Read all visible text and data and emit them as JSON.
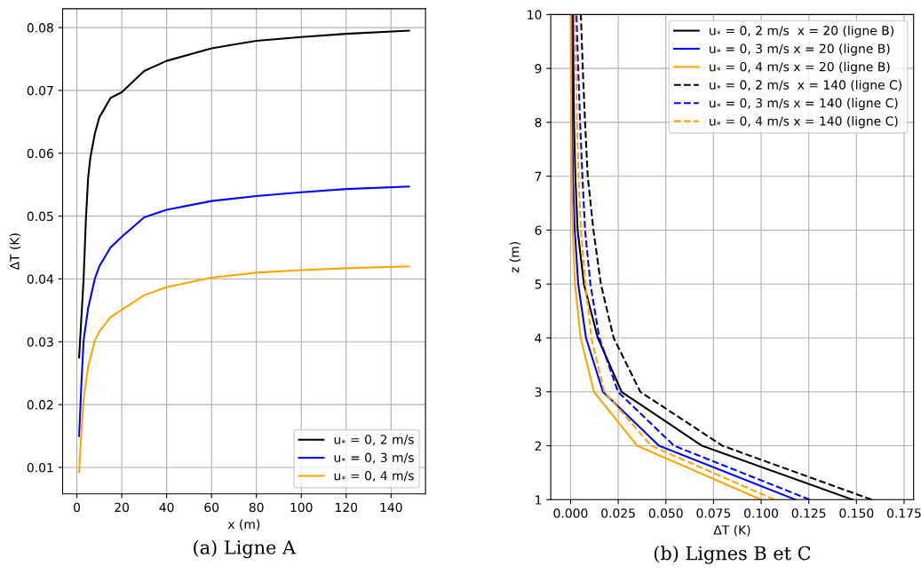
{
  "chart_data": [
    {
      "type": "line",
      "xlabel": "x (m)",
      "ylabel": "ΔT (K)",
      "annotations": [
        "(a) Ligne A"
      ],
      "xlim": [
        -6.35,
        155.35
      ],
      "ylim": [
        0.0058,
        0.083
      ],
      "xticks": [
        0,
        20,
        40,
        60,
        80,
        100,
        120,
        140
      ],
      "yticks": [
        0.01,
        0.02,
        0.03,
        0.04,
        0.05,
        0.06,
        0.07,
        0.08
      ],
      "grid": true,
      "legend": "lower right",
      "line_style": "solid",
      "series": [
        {
          "name": "u$_{*}$ = 0, 2 m/s",
          "color": "#000000",
          "x": [
            1,
            3,
            4,
            5,
            6,
            8,
            10,
            15,
            20,
            30,
            40,
            60,
            80,
            100,
            120,
            148
          ],
          "values": [
            0.0275,
            0.04,
            0.0493,
            0.056,
            0.0593,
            0.0631,
            0.0657,
            0.0688,
            0.0697,
            0.0731,
            0.0747,
            0.0767,
            0.0779,
            0.0785,
            0.079,
            0.0795
          ]
        },
        {
          "name": "u$_{*}$ = 0, 3 m/s",
          "color": "#0000ff",
          "x": [
            1,
            2,
            3,
            5,
            8,
            10,
            15,
            20,
            30,
            40,
            60,
            80,
            100,
            120,
            148
          ],
          "values": [
            0.015,
            0.0232,
            0.0302,
            0.0353,
            0.04,
            0.042,
            0.045,
            0.0467,
            0.0498,
            0.051,
            0.0524,
            0.0532,
            0.0538,
            0.0543,
            0.0547
          ]
        },
        {
          "name": "u$_{*}$ = 0, 4 m/s",
          "color": "#ffa500",
          "x": [
            1,
            2,
            3,
            5,
            8,
            10,
            15,
            20,
            30,
            40,
            60,
            80,
            100,
            120,
            148
          ],
          "values": [
            0.0093,
            0.0157,
            0.0208,
            0.026,
            0.0302,
            0.0316,
            0.0339,
            0.0351,
            0.0374,
            0.0387,
            0.0402,
            0.041,
            0.0414,
            0.0417,
            0.042
          ]
        }
      ]
    },
    {
      "type": "line",
      "xlabel": "ΔT (K)",
      "ylabel": "z (m)",
      "annotations": [
        "(b) Lignes B et C"
      ],
      "xlim": [
        -0.0104,
        0.18
      ],
      "ylim": [
        1,
        10
      ],
      "xticks": [
        {
          "value": 0,
          "label": "0.000"
        },
        {
          "value": 0.025,
          "label": "0.025"
        },
        {
          "value": 0.05,
          "label": "0.050"
        },
        {
          "value": 0.075,
          "label": "0.075"
        },
        {
          "value": 0.1,
          "label": "0.100"
        },
        {
          "value": 0.125,
          "label": "0.125"
        },
        {
          "value": 0.15,
          "label": "0.150"
        },
        {
          "value": 0.175,
          "label": "0.175"
        }
      ],
      "yticks": [
        1,
        2,
        3,
        4,
        5,
        6,
        7,
        8,
        9,
        10
      ],
      "grid": true,
      "legend": "top right",
      "series": [
        {
          "name": "u$_{*}$ = 0, 2 m/s  x = 20 (ligne B)",
          "color": "#000000",
          "line_style": "solid",
          "x": [
            0.148,
            0.069,
            0.0268,
            0.0143,
            0.007,
            0.0037,
            0.0025,
            0.0018,
            0.0015,
            0.0013
          ],
          "values": [
            1,
            2,
            3,
            4,
            5,
            6,
            7,
            8,
            9,
            10
          ]
        },
        {
          "name": "u$_{*}$ = 0, 3 m/s x = 20 (ligne B)",
          "color": "#0000ff",
          "line_style": "solid",
          "x": [
            0.118,
            0.0464,
            0.017,
            0.0081,
            0.004,
            0.0022,
            0.0012,
            0.0009,
            0.0007,
            0.0006
          ],
          "values": [
            1,
            2,
            3,
            4,
            5,
            6,
            7,
            8,
            9,
            10
          ]
        },
        {
          "name": "u$_{*}$ = 0, 4 m/s x = 20 (ligne B)",
          "color": "#ffa500",
          "line_style": "solid",
          "x": [
            0.1,
            0.035,
            0.0123,
            0.0053,
            0.0023,
            0.0011,
            0.0006,
            0.0003,
            0.0002,
            0.0001
          ],
          "values": [
            1,
            2,
            3,
            4,
            5,
            6,
            7,
            8,
            9,
            10
          ]
        },
        {
          "name": "u$_{*}$ = 0, 2 m/s  x = 140 (ligne C)",
          "color": "#000000",
          "line_style": "dashed",
          "x": [
            0.158,
            0.0797,
            0.0366,
            0.0226,
            0.0159,
            0.012,
            0.009,
            0.0076,
            0.0064,
            0.0054
          ],
          "values": [
            1,
            2,
            3,
            4,
            5,
            6,
            7,
            8,
            9,
            10
          ]
        },
        {
          "name": "u$_{*}$ = 0, 3 m/s x = 140 (ligne C)",
          "color": "#0000ff",
          "line_style": "dashed",
          "x": [
            0.1255,
            0.0543,
            0.0249,
            0.0151,
            0.0104,
            0.0076,
            0.0062,
            0.005,
            0.004,
            0.0031
          ],
          "values": [
            1,
            2,
            3,
            4,
            5,
            6,
            7,
            8,
            9,
            10
          ]
        },
        {
          "name": "u$_{*}$ = 0, 4 m/s x = 140 (ligne C)",
          "color": "#ffa500",
          "line_style": "dashed",
          "x": [
            0.107,
            0.0423,
            0.0177,
            0.0109,
            0.0078,
            0.0054,
            0.0042,
            0.0034,
            0.0028,
            0.0022
          ],
          "values": [
            1,
            2,
            3,
            4,
            5,
            6,
            7,
            8,
            9,
            10
          ]
        }
      ]
    }
  ]
}
